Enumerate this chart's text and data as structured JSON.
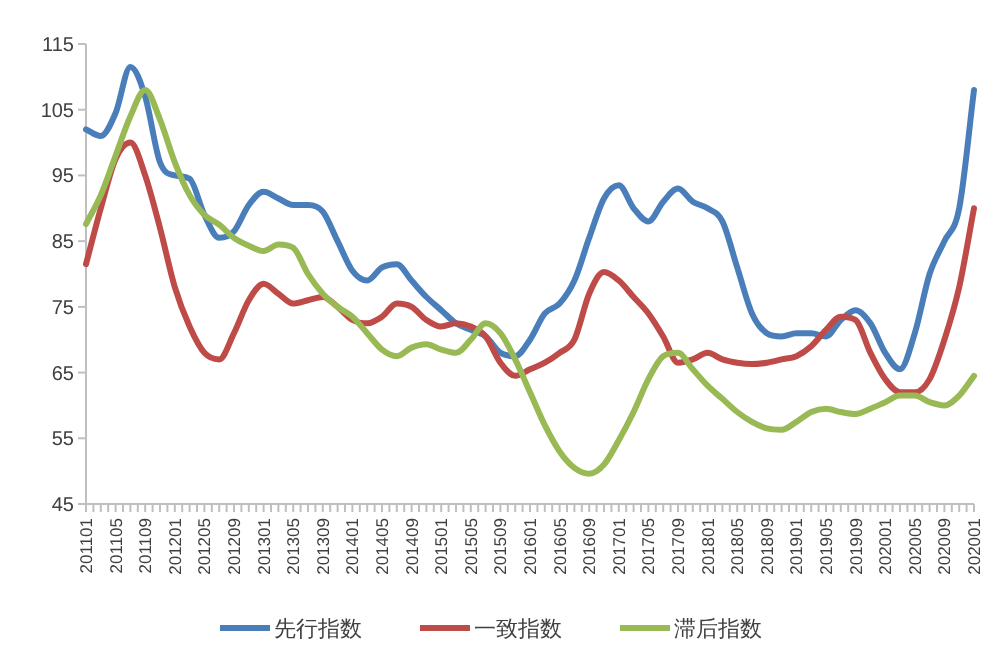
{
  "chart_data": {
    "type": "line",
    "categories": [
      "201101",
      null,
      "201105",
      null,
      "201109",
      null,
      "201201",
      null,
      "201205",
      null,
      "201209",
      null,
      "201301",
      null,
      "201305",
      null,
      "201309",
      null,
      "201401",
      null,
      "201405",
      null,
      "201409",
      null,
      "201501",
      null,
      "201505",
      null,
      "201509",
      null,
      "201601",
      null,
      "201605",
      null,
      "201609",
      null,
      "201701",
      null,
      "201705",
      null,
      "201709",
      null,
      "201801",
      null,
      "201805",
      null,
      "201809",
      null,
      "201901",
      null,
      "201905",
      null,
      "201909",
      null,
      "202001",
      null,
      "202005",
      null,
      "202009",
      null,
      "202001"
    ],
    "series": [
      {
        "name": "先行指数",
        "color": "#4a7ebb",
        "values": [
          102,
          101,
          104.5,
          111.5,
          107,
          97,
          95,
          94.5,
          89,
          85.5,
          86.5,
          90.5,
          92.5,
          91.5,
          90.5,
          90.5,
          89.5,
          85,
          80.5,
          79,
          81,
          81.5,
          79,
          76.5,
          74.5,
          72.5,
          71.5,
          70.5,
          68,
          67.5,
          70,
          74,
          75.5,
          79,
          85.5,
          91.5,
          93.5,
          90,
          88,
          91,
          93,
          91,
          90,
          88,
          81,
          74,
          71,
          70.5,
          71,
          71,
          70.5,
          73,
          74.5,
          72.5,
          68,
          65.5,
          71,
          80,
          85,
          90,
          108
        ]
      },
      {
        "name": "一致指数",
        "color": "#be4b48",
        "values": [
          81.5,
          90,
          97.5,
          100,
          95,
          87,
          78,
          72,
          68,
          67,
          71,
          76,
          78.5,
          77,
          75.5,
          76,
          76.5,
          75,
          73,
          72.5,
          73.5,
          75.5,
          75,
          73,
          72,
          72.5,
          72,
          70.5,
          66.5,
          64.5,
          65.5,
          66.5,
          68,
          70,
          77,
          80.3,
          79,
          76.5,
          74,
          70.5,
          66.5,
          67,
          68,
          67,
          66.5,
          66.3,
          66.5,
          67,
          67.5,
          69,
          71.5,
          73.5,
          73,
          68,
          64,
          62,
          62,
          64,
          70,
          78,
          90
        ]
      },
      {
        "name": "滞后指数",
        "color": "#98b954",
        "values": [
          87.6,
          92,
          98,
          104,
          108,
          103.5,
          97,
          92,
          89,
          87.5,
          85.5,
          84.3,
          83.5,
          84.5,
          84,
          80,
          77,
          75,
          73.5,
          71,
          68.5,
          67.5,
          68.8,
          69.3,
          68.5,
          68,
          70,
          72.5,
          71,
          67,
          62,
          57,
          53,
          50.5,
          49.6,
          51,
          54.7,
          59,
          64,
          67.5,
          68,
          65.5,
          63,
          61,
          59,
          57.5,
          56.5,
          56.3,
          57.5,
          59,
          59.5,
          59,
          58.7,
          59.5,
          60.5,
          61.5,
          61.5,
          60.5,
          60,
          61.5,
          64.5
        ]
      }
    ],
    "ylim": [
      45,
      115
    ],
    "yticks": [
      45,
      55,
      65,
      75,
      85,
      95,
      105,
      115
    ],
    "grid": false,
    "legend": "bottom",
    "marker": "none",
    "line_style": "solid"
  }
}
